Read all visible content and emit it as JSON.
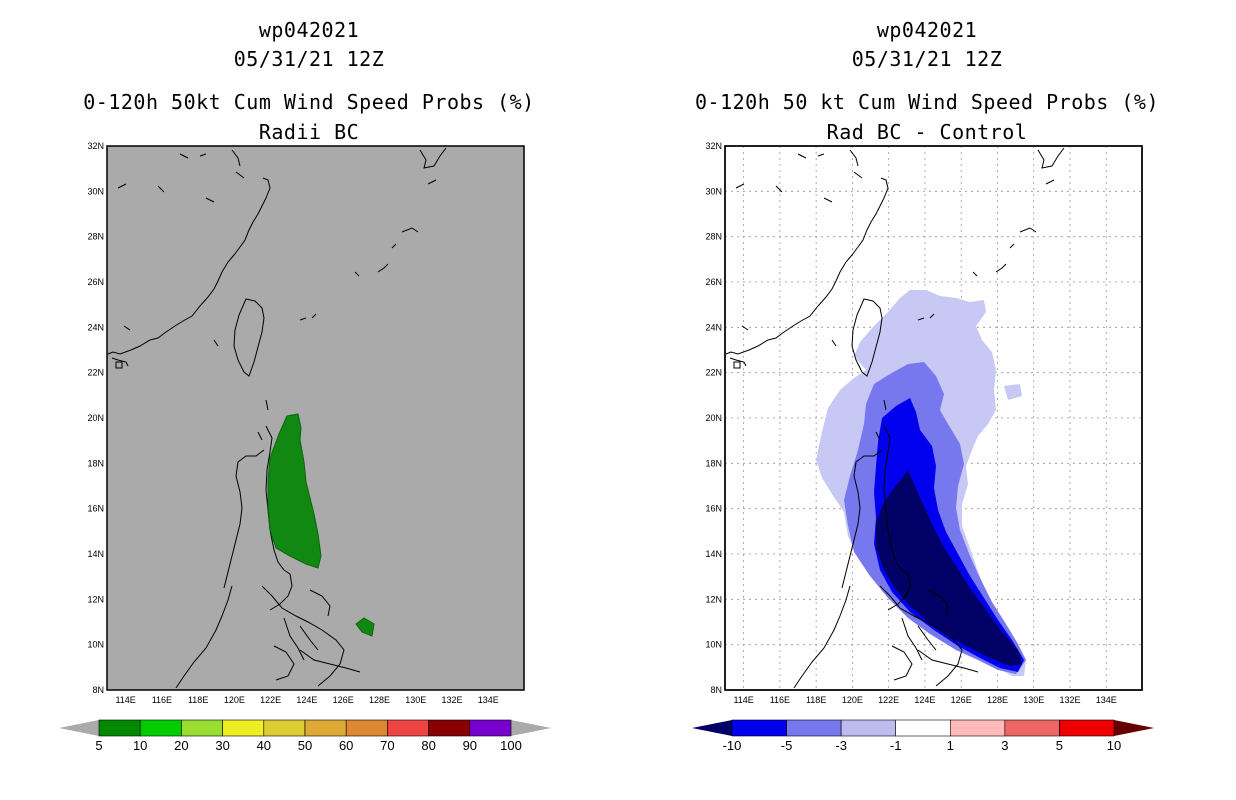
{
  "left": {
    "title_line1": "wp042021",
    "title_line2": "05/31/21 12Z",
    "title_line3": "0-120h 50kt Cum Wind Speed Probs (%)",
    "title_line4": "Radii BC",
    "colorbar": {
      "labels": [
        "5",
        "10",
        "20",
        "30",
        "40",
        "50",
        "60",
        "70",
        "80",
        "90",
        "100"
      ],
      "colors": [
        "#008800",
        "#00cc00",
        "#99dd33",
        "#eeee22",
        "#ddcc33",
        "#ddaa33",
        "#dd8833",
        "#ee4444",
        "#880000",
        "#7700cc"
      ],
      "end_color": "#aaaaaa"
    },
    "map": {
      "background": "#aaaaaa",
      "grid": false,
      "contour_color": "#118811"
    }
  },
  "right": {
    "title_line1": "wp042021",
    "title_line2": "05/31/21 12Z",
    "title_line3": "0-120h 50 kt Cum Wind Speed Probs (%)",
    "title_line4": "Rad BC - Control",
    "colorbar": {
      "labels": [
        "-10",
        "-5",
        "-3",
        "-1",
        "1",
        "3",
        "5",
        "10"
      ],
      "colors": [
        "#0000ee",
        "#7777ee",
        "#bbbbee",
        "#ffffff",
        "#ffbbbb",
        "#ee6666",
        "#ee0000"
      ],
      "left_end_color": "#000066",
      "right_end_color": "#660000"
    },
    "map": {
      "background": "#ffffff",
      "grid": true,
      "shades": [
        "#c8c8f5",
        "#7777ee",
        "#0000ee",
        "#000066"
      ]
    }
  },
  "axes": {
    "lat_ticks": [
      "32N",
      "30N",
      "28N",
      "26N",
      "24N",
      "22N",
      "20N",
      "18N",
      "16N",
      "14N",
      "12N",
      "10N",
      "8N"
    ],
    "lon_ticks": [
      "114E",
      "116E",
      "118E",
      "120E",
      "122E",
      "124E",
      "126E",
      "128E",
      "130E",
      "132E",
      "134E"
    ]
  }
}
